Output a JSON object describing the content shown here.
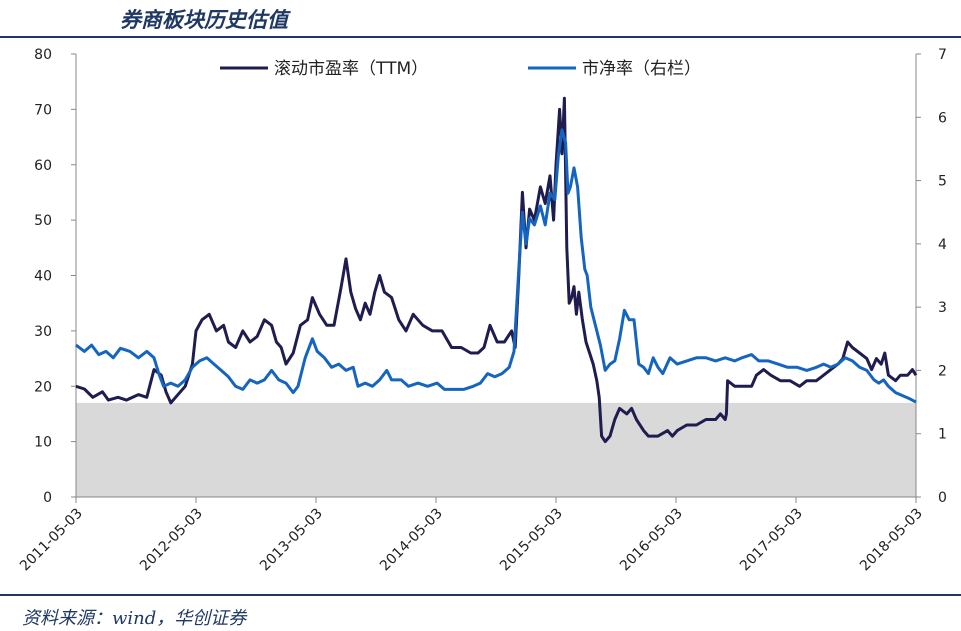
{
  "title": "券商板块历史估值",
  "source": "资料来源：wind，华创证券",
  "colors": {
    "pe": "#1f1d4f",
    "pb": "#1565c0",
    "band": "#d9d9d9",
    "axis": "#888888"
  },
  "chart_data": {
    "type": "line",
    "title": "券商板块历史估值",
    "x_labels": [
      "2011-05-03",
      "2012-05-03",
      "2013-05-03",
      "2014-05-03",
      "2015-05-03",
      "2016-05-03",
      "2017-05-03",
      "2018-05-03"
    ],
    "x_range": [
      2011.33,
      2018.33
    ],
    "y_left": {
      "ylim": [
        0,
        80
      ],
      "ticks": [
        0,
        10,
        20,
        30,
        40,
        50,
        60,
        70,
        80
      ]
    },
    "y_right": {
      "ylim": [
        0,
        7
      ],
      "ticks": [
        0,
        1,
        2,
        3,
        4,
        5,
        6,
        7
      ]
    },
    "band": {
      "axis": "left",
      "from": 0,
      "to": 17
    },
    "legend": {
      "position": "top-center"
    },
    "series": [
      {
        "name": "滚动市盈率（TTM）",
        "axis": "left",
        "points": [
          [
            2011.33,
            20
          ],
          [
            2011.4,
            19.5
          ],
          [
            2011.47,
            18
          ],
          [
            2011.55,
            19
          ],
          [
            2011.6,
            17.5
          ],
          [
            2011.68,
            18
          ],
          [
            2011.75,
            17.5
          ],
          [
            2011.85,
            18.5
          ],
          [
            2011.92,
            18
          ],
          [
            2011.98,
            23
          ],
          [
            2012.04,
            22
          ],
          [
            2012.08,
            19
          ],
          [
            2012.12,
            17
          ],
          [
            2012.16,
            18
          ],
          [
            2012.24,
            20
          ],
          [
            2012.3,
            24
          ],
          [
            2012.33,
            30
          ],
          [
            2012.38,
            32
          ],
          [
            2012.44,
            33
          ],
          [
            2012.5,
            30
          ],
          [
            2012.56,
            31
          ],
          [
            2012.6,
            28
          ],
          [
            2012.66,
            27
          ],
          [
            2012.72,
            30
          ],
          [
            2012.78,
            28
          ],
          [
            2012.84,
            29
          ],
          [
            2012.9,
            32
          ],
          [
            2012.96,
            31
          ],
          [
            2013.0,
            28
          ],
          [
            2013.04,
            27
          ],
          [
            2013.08,
            24
          ],
          [
            2013.14,
            26
          ],
          [
            2013.2,
            31
          ],
          [
            2013.26,
            32
          ],
          [
            2013.3,
            36
          ],
          [
            2013.36,
            33
          ],
          [
            2013.42,
            31
          ],
          [
            2013.48,
            31
          ],
          [
            2013.54,
            38
          ],
          [
            2013.58,
            43
          ],
          [
            2013.62,
            37
          ],
          [
            2013.66,
            34
          ],
          [
            2013.7,
            32
          ],
          [
            2013.74,
            35
          ],
          [
            2013.78,
            33
          ],
          [
            2013.82,
            37
          ],
          [
            2013.86,
            40
          ],
          [
            2013.9,
            37
          ],
          [
            2013.96,
            36
          ],
          [
            2014.02,
            32
          ],
          [
            2014.08,
            30
          ],
          [
            2014.14,
            33
          ],
          [
            2014.22,
            31
          ],
          [
            2014.3,
            30
          ],
          [
            2014.38,
            30
          ],
          [
            2014.46,
            27
          ],
          [
            2014.54,
            27
          ],
          [
            2014.62,
            26
          ],
          [
            2014.68,
            26
          ],
          [
            2014.73,
            27
          ],
          [
            2014.78,
            31
          ],
          [
            2014.84,
            28
          ],
          [
            2014.9,
            28
          ],
          [
            2014.96,
            30
          ],
          [
            2014.99,
            27
          ],
          [
            2015.02,
            40
          ],
          [
            2015.05,
            55
          ],
          [
            2015.08,
            45
          ],
          [
            2015.11,
            52
          ],
          [
            2015.15,
            50
          ],
          [
            2015.2,
            56
          ],
          [
            2015.24,
            53
          ],
          [
            2015.28,
            58
          ],
          [
            2015.31,
            50
          ],
          [
            2015.33,
            60
          ],
          [
            2015.36,
            70
          ],
          [
            2015.38,
            62
          ],
          [
            2015.4,
            72
          ],
          [
            2015.42,
            45
          ],
          [
            2015.44,
            35
          ],
          [
            2015.46,
            36
          ],
          [
            2015.48,
            38
          ],
          [
            2015.5,
            33
          ],
          [
            2015.52,
            37
          ],
          [
            2015.55,
            32
          ],
          [
            2015.58,
            28
          ],
          [
            2015.61,
            26
          ],
          [
            2015.64,
            24
          ],
          [
            2015.67,
            21
          ],
          [
            2015.69,
            18
          ],
          [
            2015.71,
            11
          ],
          [
            2015.74,
            10
          ],
          [
            2015.78,
            11
          ],
          [
            2015.82,
            14
          ],
          [
            2015.86,
            16
          ],
          [
            2015.92,
            15
          ],
          [
            2015.96,
            16
          ],
          [
            2016.0,
            14
          ],
          [
            2016.06,
            12
          ],
          [
            2016.1,
            11
          ],
          [
            2016.18,
            11
          ],
          [
            2016.26,
            12
          ],
          [
            2016.3,
            11
          ],
          [
            2016.34,
            12
          ],
          [
            2016.42,
            13
          ],
          [
            2016.5,
            13
          ],
          [
            2016.58,
            14
          ],
          [
            2016.66,
            14
          ],
          [
            2016.7,
            15
          ],
          [
            2016.74,
            14
          ],
          [
            2016.75,
            15
          ],
          [
            2016.76,
            21
          ],
          [
            2016.82,
            20
          ],
          [
            2016.88,
            20
          ],
          [
            2016.96,
            20
          ],
          [
            2017.0,
            22
          ],
          [
            2017.06,
            23
          ],
          [
            2017.12,
            22
          ],
          [
            2017.2,
            21
          ],
          [
            2017.28,
            21
          ],
          [
            2017.36,
            20
          ],
          [
            2017.42,
            21
          ],
          [
            2017.5,
            21
          ],
          [
            2017.56,
            22
          ],
          [
            2017.62,
            23
          ],
          [
            2017.68,
            24
          ],
          [
            2017.72,
            25
          ],
          [
            2017.76,
            28
          ],
          [
            2017.8,
            27
          ],
          [
            2017.86,
            26
          ],
          [
            2017.92,
            25
          ],
          [
            2017.96,
            23
          ],
          [
            2018.0,
            25
          ],
          [
            2018.04,
            24
          ],
          [
            2018.07,
            26
          ],
          [
            2018.1,
            22
          ],
          [
            2018.16,
            21
          ],
          [
            2018.2,
            22
          ],
          [
            2018.26,
            22
          ],
          [
            2018.3,
            23
          ],
          [
            2018.33,
            22
          ]
        ]
      },
      {
        "name": "市净率（右栏）",
        "axis": "right",
        "points": [
          [
            2011.33,
            2.4
          ],
          [
            2011.4,
            2.3
          ],
          [
            2011.46,
            2.4
          ],
          [
            2011.52,
            2.25
          ],
          [
            2011.58,
            2.3
          ],
          [
            2011.64,
            2.2
          ],
          [
            2011.7,
            2.35
          ],
          [
            2011.78,
            2.3
          ],
          [
            2011.85,
            2.2
          ],
          [
            2011.92,
            2.3
          ],
          [
            2011.98,
            2.2
          ],
          [
            2012.02,
            1.95
          ],
          [
            2012.06,
            1.75
          ],
          [
            2012.12,
            1.8
          ],
          [
            2012.18,
            1.75
          ],
          [
            2012.24,
            1.85
          ],
          [
            2012.3,
            2.05
          ],
          [
            2012.36,
            2.15
          ],
          [
            2012.42,
            2.2
          ],
          [
            2012.48,
            2.1
          ],
          [
            2012.54,
            2.0
          ],
          [
            2012.6,
            1.9
          ],
          [
            2012.66,
            1.75
          ],
          [
            2012.72,
            1.7
          ],
          [
            2012.78,
            1.85
          ],
          [
            2012.84,
            1.8
          ],
          [
            2012.9,
            1.85
          ],
          [
            2012.96,
            2.0
          ],
          [
            2013.02,
            1.85
          ],
          [
            2013.08,
            1.8
          ],
          [
            2013.14,
            1.65
          ],
          [
            2013.18,
            1.75
          ],
          [
            2013.24,
            2.2
          ],
          [
            2013.3,
            2.5
          ],
          [
            2013.34,
            2.3
          ],
          [
            2013.4,
            2.2
          ],
          [
            2013.46,
            2.05
          ],
          [
            2013.52,
            2.1
          ],
          [
            2013.58,
            2.0
          ],
          [
            2013.64,
            2.05
          ],
          [
            2013.68,
            1.75
          ],
          [
            2013.74,
            1.8
          ],
          [
            2013.8,
            1.75
          ],
          [
            2013.86,
            1.85
          ],
          [
            2013.92,
            2.0
          ],
          [
            2013.96,
            1.85
          ],
          [
            2014.04,
            1.85
          ],
          [
            2014.1,
            1.75
          ],
          [
            2014.18,
            1.8
          ],
          [
            2014.26,
            1.75
          ],
          [
            2014.34,
            1.8
          ],
          [
            2014.4,
            1.7
          ],
          [
            2014.48,
            1.7
          ],
          [
            2014.56,
            1.7
          ],
          [
            2014.64,
            1.75
          ],
          [
            2014.7,
            1.8
          ],
          [
            2014.76,
            1.95
          ],
          [
            2014.82,
            1.9
          ],
          [
            2014.88,
            1.95
          ],
          [
            2014.94,
            2.05
          ],
          [
            2014.98,
            2.3
          ],
          [
            2015.02,
            3.6
          ],
          [
            2015.05,
            4.5
          ],
          [
            2015.08,
            4.0
          ],
          [
            2015.11,
            4.4
          ],
          [
            2015.15,
            4.3
          ],
          [
            2015.2,
            4.6
          ],
          [
            2015.24,
            4.3
          ],
          [
            2015.28,
            4.8
          ],
          [
            2015.32,
            4.7
          ],
          [
            2015.35,
            5.4
          ],
          [
            2015.38,
            5.8
          ],
          [
            2015.41,
            5.6
          ],
          [
            2015.43,
            4.8
          ],
          [
            2015.45,
            4.9
          ],
          [
            2015.48,
            5.2
          ],
          [
            2015.51,
            4.9
          ],
          [
            2015.54,
            4.1
          ],
          [
            2015.57,
            3.6
          ],
          [
            2015.59,
            3.5
          ],
          [
            2015.62,
            3.0
          ],
          [
            2015.66,
            2.7
          ],
          [
            2015.7,
            2.4
          ],
          [
            2015.74,
            2.0
          ],
          [
            2015.78,
            2.1
          ],
          [
            2015.82,
            2.15
          ],
          [
            2015.86,
            2.5
          ],
          [
            2015.9,
            2.95
          ],
          [
            2015.94,
            2.8
          ],
          [
            2015.98,
            2.8
          ],
          [
            2016.02,
            2.1
          ],
          [
            2016.06,
            2.05
          ],
          [
            2016.1,
            1.95
          ],
          [
            2016.14,
            2.2
          ],
          [
            2016.18,
            2.05
          ],
          [
            2016.22,
            1.95
          ],
          [
            2016.28,
            2.2
          ],
          [
            2016.34,
            2.1
          ],
          [
            2016.42,
            2.15
          ],
          [
            2016.5,
            2.2
          ],
          [
            2016.58,
            2.2
          ],
          [
            2016.66,
            2.15
          ],
          [
            2016.74,
            2.2
          ],
          [
            2016.82,
            2.15
          ],
          [
            2016.88,
            2.2
          ],
          [
            2016.96,
            2.25
          ],
          [
            2017.02,
            2.15
          ],
          [
            2017.1,
            2.15
          ],
          [
            2017.18,
            2.1
          ],
          [
            2017.26,
            2.05
          ],
          [
            2017.34,
            2.05
          ],
          [
            2017.42,
            2.0
          ],
          [
            2017.5,
            2.05
          ],
          [
            2017.56,
            2.1
          ],
          [
            2017.62,
            2.05
          ],
          [
            2017.68,
            2.1
          ],
          [
            2017.74,
            2.2
          ],
          [
            2017.8,
            2.15
          ],
          [
            2017.86,
            2.05
          ],
          [
            2017.92,
            2.0
          ],
          [
            2017.98,
            1.85
          ],
          [
            2018.02,
            1.8
          ],
          [
            2018.06,
            1.85
          ],
          [
            2018.1,
            1.75
          ],
          [
            2018.16,
            1.65
          ],
          [
            2018.22,
            1.6
          ],
          [
            2018.28,
            1.55
          ],
          [
            2018.33,
            1.5
          ]
        ]
      }
    ]
  }
}
